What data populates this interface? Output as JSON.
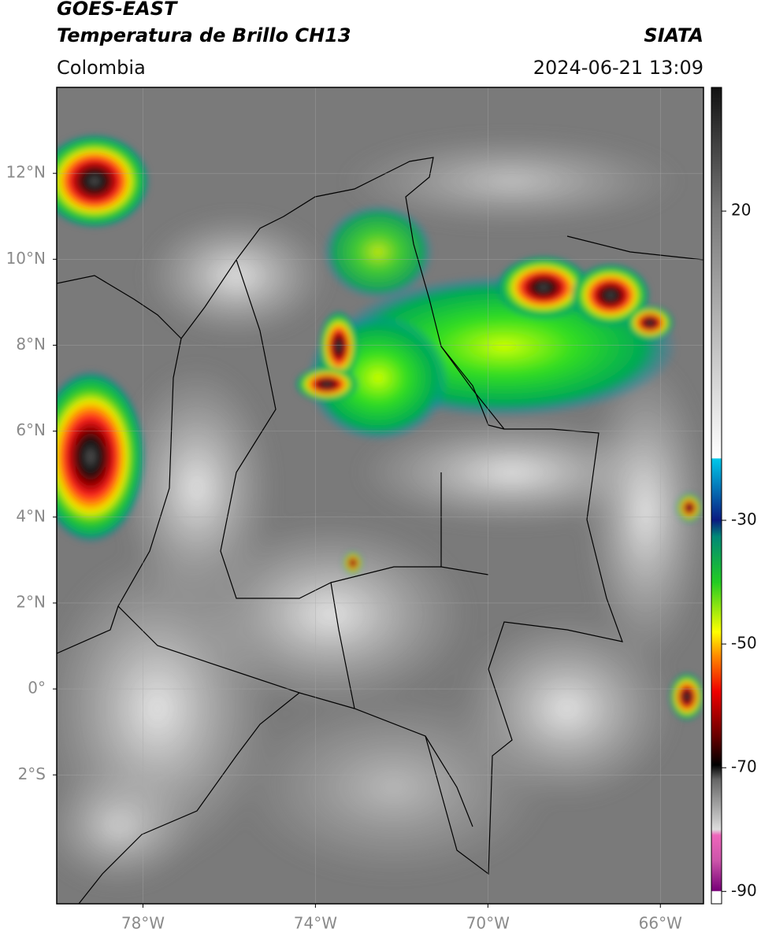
{
  "header": {
    "title": "GOES-EAST",
    "subtitle": "Temperatura de Brillo CH13",
    "source": "SIATA",
    "region": "Colombia",
    "timestamp": "2024-06-21 13:09"
  },
  "map": {
    "lon_range": [
      -80,
      -65
    ],
    "lat_range": [
      -5,
      14
    ],
    "lat_ticks": [
      {
        "value": 12,
        "label": "12°N"
      },
      {
        "value": 10,
        "label": "10°N"
      },
      {
        "value": 8,
        "label": "8°N"
      },
      {
        "value": 6,
        "label": "6°N"
      },
      {
        "value": 4,
        "label": "4°N"
      },
      {
        "value": 2,
        "label": "2°N"
      },
      {
        "value": 0,
        "label": "0°"
      },
      {
        "value": -2,
        "label": "2°S"
      }
    ],
    "lon_ticks": [
      {
        "value": -78,
        "label": "78°W"
      },
      {
        "value": -74,
        "label": "74°W"
      },
      {
        "value": -70,
        "label": "70°W"
      },
      {
        "value": -66,
        "label": "66°W"
      }
    ],
    "grid": true
  },
  "colorbar": {
    "range": [
      -92,
      40
    ],
    "ticks": [
      20,
      -30,
      -50,
      -70,
      -90
    ]
  }
}
